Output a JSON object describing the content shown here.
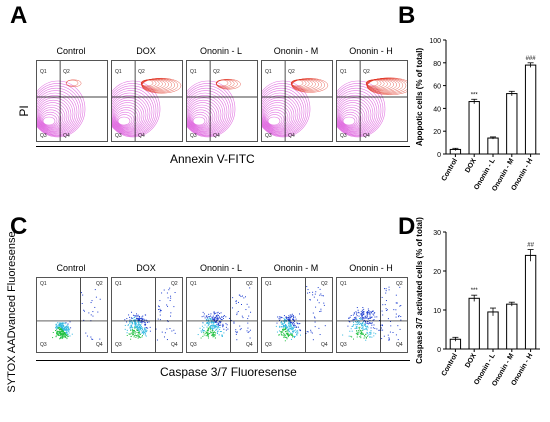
{
  "panels": {
    "A": {
      "letter": "A",
      "x_axis_label": "Annexin V-FITC",
      "y_axis_label": "PI",
      "plots": [
        {
          "title": "Control"
        },
        {
          "title": "DOX"
        },
        {
          "title": "Ononin - L"
        },
        {
          "title": "Ononin - M"
        },
        {
          "title": "Ononin - H"
        }
      ],
      "quadrants": [
        "Q1",
        "Q2",
        "Q3",
        "Q4"
      ]
    },
    "C": {
      "letter": "C",
      "x_axis_label": "Caspase 3/7 Fluoresense",
      "y_axis_label": "SYTOX AADvanced Fluoresense",
      "plots": [
        {
          "title": "Control"
        },
        {
          "title": "DOX"
        },
        {
          "title": "Ononin - L"
        },
        {
          "title": "Ononin - M"
        },
        {
          "title": "Ononin - H"
        }
      ],
      "quadrants": [
        "Q1",
        "Q2",
        "Q3",
        "Q4"
      ]
    },
    "B": {
      "letter": "B"
    },
    "D": {
      "letter": "D"
    }
  },
  "chart_data": [
    {
      "panel": "B",
      "type": "bar",
      "categories": [
        "Control",
        "DOX",
        "Ononin - L",
        "Ononin - M",
        "Ononin - H"
      ],
      "values": [
        4,
        46,
        14,
        53,
        78
      ],
      "errors": [
        1,
        2,
        1,
        2,
        2
      ],
      "annotations": [
        "",
        "***",
        "",
        "",
        "###"
      ],
      "ylabel": "Apopotic cells (% of total)",
      "ylim": [
        0,
        100
      ],
      "yticks": [
        0,
        20,
        40,
        60,
        80,
        100
      ],
      "color": "#ffffff"
    },
    {
      "panel": "D",
      "type": "bar",
      "categories": [
        "Control",
        "DOX",
        "Ononin - L",
        "Ononin - M",
        "Ononin - H"
      ],
      "values": [
        2.5,
        13,
        9.5,
        11.5,
        24
      ],
      "errors": [
        0.5,
        0.8,
        1.0,
        0.5,
        1.5
      ],
      "annotations": [
        "",
        "***",
        "",
        "",
        "##"
      ],
      "ylabel": "Caspase 3/7 activated cells (% of total)",
      "ylim": [
        0,
        30
      ],
      "yticks": [
        0,
        10,
        20,
        30
      ],
      "color": "#ffffff"
    }
  ],
  "colors": {
    "contour_pink": "#d63ad6",
    "contour_red": "#e03020",
    "scatter_blue": "#2040d0",
    "scatter_green": "#20c040",
    "scatter_cyan": "#30b8e0"
  }
}
